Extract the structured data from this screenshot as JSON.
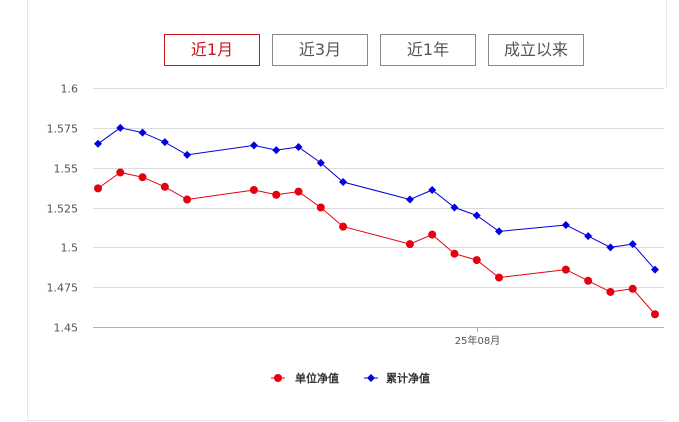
{
  "tabs": [
    {
      "label": "近1月",
      "active": true
    },
    {
      "label": "近3月",
      "active": false
    },
    {
      "label": "近1年",
      "active": false
    },
    {
      "label": "成立以来",
      "active": false
    }
  ],
  "colors": {
    "accent": "#c8161d",
    "series_red": "#e4000f",
    "series_blue": "#0000e0",
    "grid": "#dcdcdc"
  },
  "chart_data": {
    "type": "line",
    "title": "",
    "xlabel": "",
    "ylabel": "",
    "ylim": [
      1.45,
      1.6
    ],
    "yticks": [
      "1.45",
      "1.475",
      "1.5",
      "1.525",
      "1.55",
      "1.575",
      "1.6"
    ],
    "x_tick_label": "25年08月",
    "x_tick_index": 17,
    "x": [
      0,
      1,
      2,
      3,
      4,
      7,
      8,
      9,
      10,
      11,
      14,
      15,
      16,
      17,
      18,
      21,
      22,
      23,
      24,
      25
    ],
    "x_max": 25,
    "grid": true,
    "legend": "bottom-center",
    "series": [
      {
        "name": "单位净值",
        "marker": "circle",
        "color": "#e4000f",
        "values": [
          1.537,
          1.547,
          1.544,
          1.538,
          1.53,
          1.536,
          1.533,
          1.535,
          1.525,
          1.513,
          1.502,
          1.508,
          1.496,
          1.492,
          1.481,
          1.486,
          1.479,
          1.472,
          1.474,
          1.458
        ]
      },
      {
        "name": "累计净值",
        "marker": "diamond",
        "color": "#0000e0",
        "values": [
          1.565,
          1.575,
          1.572,
          1.566,
          1.558,
          1.564,
          1.561,
          1.563,
          1.553,
          1.541,
          1.53,
          1.536,
          1.525,
          1.52,
          1.51,
          1.514,
          1.507,
          1.5,
          1.502,
          1.486
        ]
      }
    ]
  }
}
